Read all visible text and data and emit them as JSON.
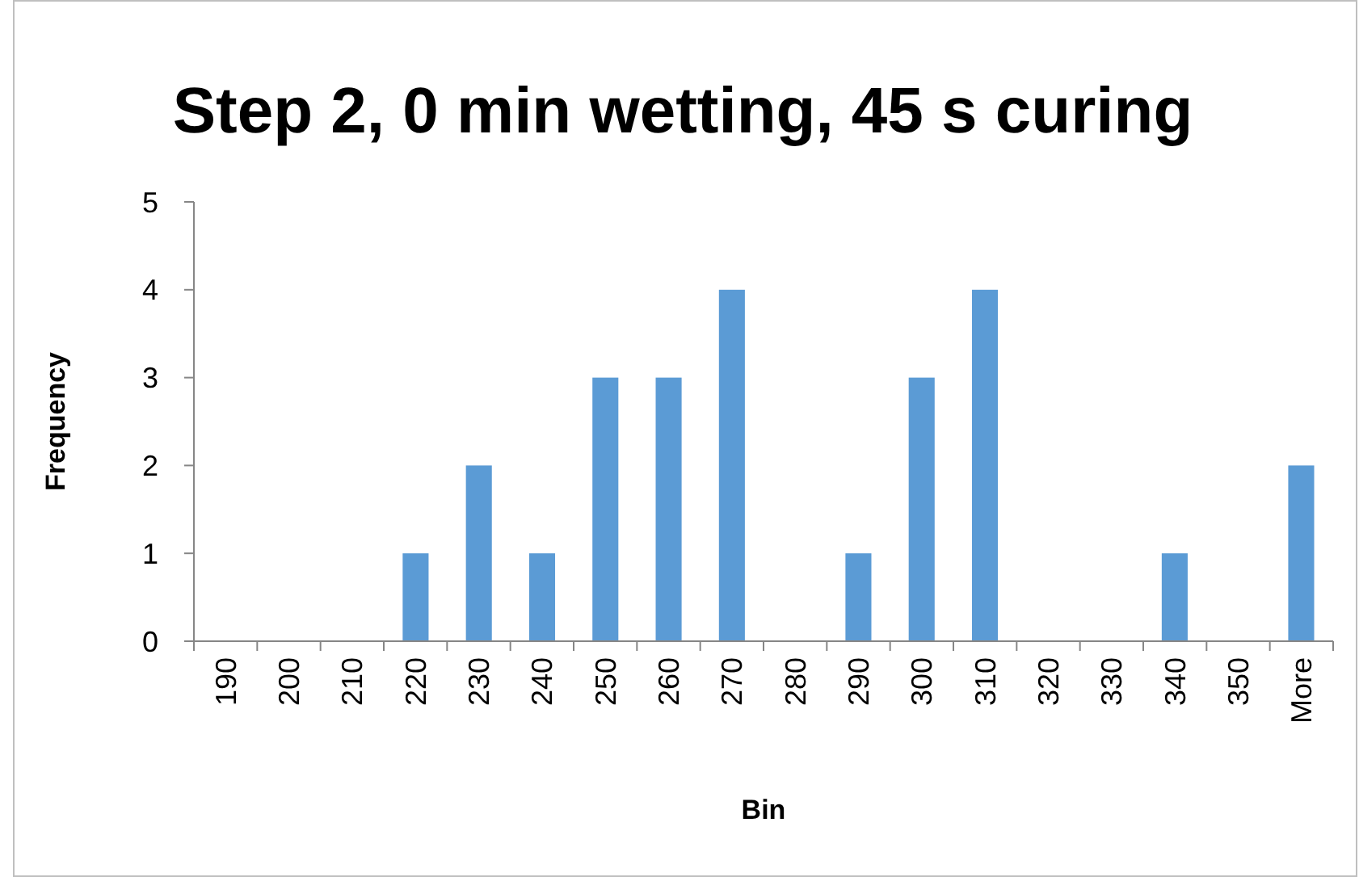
{
  "chart_data": {
    "type": "bar",
    "title": "Step 2, 0 min wetting, 45 s curing",
    "xlabel": "Bin",
    "ylabel": "Frequency",
    "categories": [
      "190",
      "200",
      "210",
      "220",
      "230",
      "240",
      "250",
      "260",
      "270",
      "280",
      "290",
      "300",
      "310",
      "320",
      "330",
      "340",
      "350",
      "More"
    ],
    "values": [
      0,
      0,
      0,
      1,
      2,
      1,
      3,
      3,
      4,
      0,
      1,
      3,
      4,
      0,
      0,
      1,
      0,
      2
    ],
    "color": "#5b9bd5",
    "ylim": [
      0,
      5
    ],
    "yticks": [
      0,
      1,
      2,
      3,
      4,
      5
    ],
    "grid": false
  }
}
